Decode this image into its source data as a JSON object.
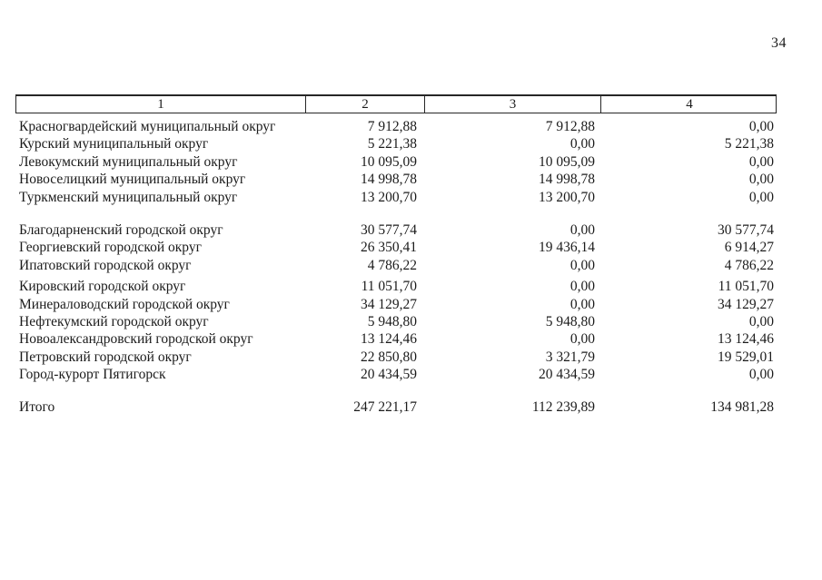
{
  "page": {
    "number": "34"
  },
  "table": {
    "header": [
      "1",
      "2",
      "3",
      "4"
    ],
    "groups": [
      {
        "rows": [
          {
            "name": "Красногвардейский муниципальный округ",
            "c2": "7 912,88",
            "c3": "7 912,88",
            "c4": "0,00"
          },
          {
            "name": "Курский муниципальный округ",
            "c2": "5 221,38",
            "c3": "0,00",
            "c4": "5 221,38"
          },
          {
            "name": "Левокумский муниципальный округ",
            "c2": "10 095,09",
            "c3": "10 095,09",
            "c4": "0,00"
          },
          {
            "name": "Новоселицкий муниципальный округ",
            "c2": "14 998,78",
            "c3": "14 998,78",
            "c4": "0,00"
          },
          {
            "name": "Туркменский муниципальный округ",
            "c2": "13 200,70",
            "c3": "13 200,70",
            "c4": "0,00"
          }
        ]
      },
      {
        "rows": [
          {
            "name": "Благодарненский городской округ",
            "c2": "30 577,74",
            "c3": "0,00",
            "c4": "30 577,74"
          },
          {
            "name": "Георгиевский городской округ",
            "c2": "26 350,41",
            "c3": "19 436,14",
            "c4": "6 914,27"
          },
          {
            "name": "Ипатовский городской округ",
            "c2": "4 786,22",
            "c3": "0,00",
            "c4": "4 786,22"
          }
        ]
      },
      {
        "rows": [
          {
            "name": "Кировский городской округ",
            "c2": "11 051,70",
            "c3": "0,00",
            "c4": "11 051,70"
          },
          {
            "name": "Минераловодский городской округ",
            "c2": "34 129,27",
            "c3": "0,00",
            "c4": "34 129,27"
          },
          {
            "name": "Нефтекумский городской округ",
            "c2": "5 948,80",
            "c3": "5 948,80",
            "c4": "0,00"
          },
          {
            "name": "Новоалександровский городской округ",
            "c2": "13 124,46",
            "c3": "0,00",
            "c4": "13 124,46"
          },
          {
            "name": "Петровский городской округ",
            "c2": "22 850,80",
            "c3": "3 321,79",
            "c4": "19 529,01"
          },
          {
            "name": "Город-курорт Пятигорск",
            "c2": "20 434,59",
            "c3": "20 434,59",
            "c4": "0,00"
          }
        ]
      },
      {
        "rows": [
          {
            "name": "Итого",
            "c2": "247 221,17",
            "c3": "112 239,89",
            "c4": "134 981,28"
          }
        ]
      }
    ]
  }
}
